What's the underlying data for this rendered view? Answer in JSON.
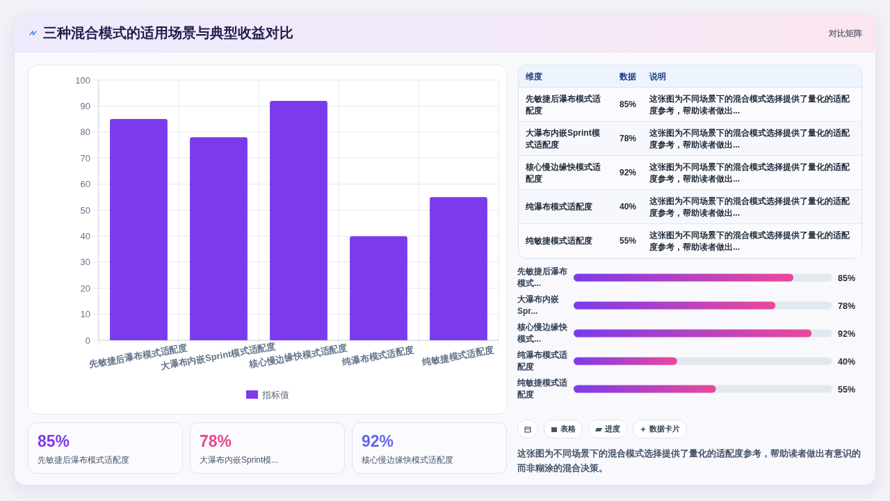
{
  "chart_data": [
    {
      "type": "other",
      "title": "三种混合模式的适用场景与典型收益对比",
      "annotations": [
        "对比矩阵"
      ]
    },
    {
      "type": "bar",
      "categories": [
        "先敏捷后瀑布模式适配度",
        "大瀑布内嵌Sprint模式适配度",
        "核心慢边缘快模式适配度",
        "纯瀑布模式适配度",
        "纯敏捷模式适配度"
      ],
      "series": [
        {
          "name": "指标值",
          "color": "#7c3aed",
          "values": [
            85,
            78,
            92,
            40,
            55
          ]
        }
      ],
      "ylim": [
        0,
        100
      ],
      "yticks": [
        0,
        10,
        20,
        30,
        40,
        50,
        60,
        70,
        80,
        90,
        100
      ],
      "grid": true,
      "legend": "bottom"
    },
    {
      "type": "other",
      "categories": [
        "先敏捷后瀑布模式适配度",
        "大瀑布内嵌Sprint模式适配度",
        "核心慢边缘快模式适配度",
        "纯瀑布模式适配度",
        "纯敏捷模式适配度"
      ],
      "value_labels": [
        "85%",
        "78%",
        "92%",
        "40%",
        "55%"
      ],
      "annotations": [
        "维度",
        "数据",
        "说明",
        "这张图为不同场景下的混合模式选择提供了量化的适配度参考，帮助读者做出...",
        "这张图为不同场景下的混合模式选择提供了量化的适配度参考，帮助读者做出...",
        "这张图为不同场景下的混合模式选择提供了量化的适配度参考，帮助读者做出...",
        "这张图为不同场景下的混合模式选择提供了量化的适配度参考，帮助读者做出...",
        "这张图为不同场景下的混合模式选择提供了量化的适配度参考，帮助读者做出..."
      ]
    },
    {
      "type": "bar",
      "orientation": "horizontal",
      "categories": [
        "先敏捷后瀑布模式...",
        "大瀑布内嵌Spr...",
        "核心慢边缘快模式...",
        "纯瀑布模式适配度",
        "纯敏捷模式适配度"
      ],
      "values": [
        85,
        78,
        92,
        40,
        55
      ],
      "value_labels": [
        "85%",
        "78%",
        "92%",
        "40%",
        "55%"
      ],
      "color": "#7c3aed",
      "xlim": [
        0,
        100
      ]
    },
    {
      "type": "other",
      "categories": [
        "先敏捷后瀑布模式适配度",
        "大瀑布内嵌Sprint模...",
        "核心慢边缘快模式适配度"
      ],
      "value_labels": [
        "85%",
        "78%",
        "92%"
      ]
    },
    {
      "type": "other",
      "categories": [
        null,
        "表格",
        "进度",
        "数据卡片"
      ],
      "annotations": [
        "这张图为不同场景下的混合模式选择提供了量化的适配度参考，帮助读者做出有意识的而非糊涂的混合决策。"
      ]
    }
  ]
}
